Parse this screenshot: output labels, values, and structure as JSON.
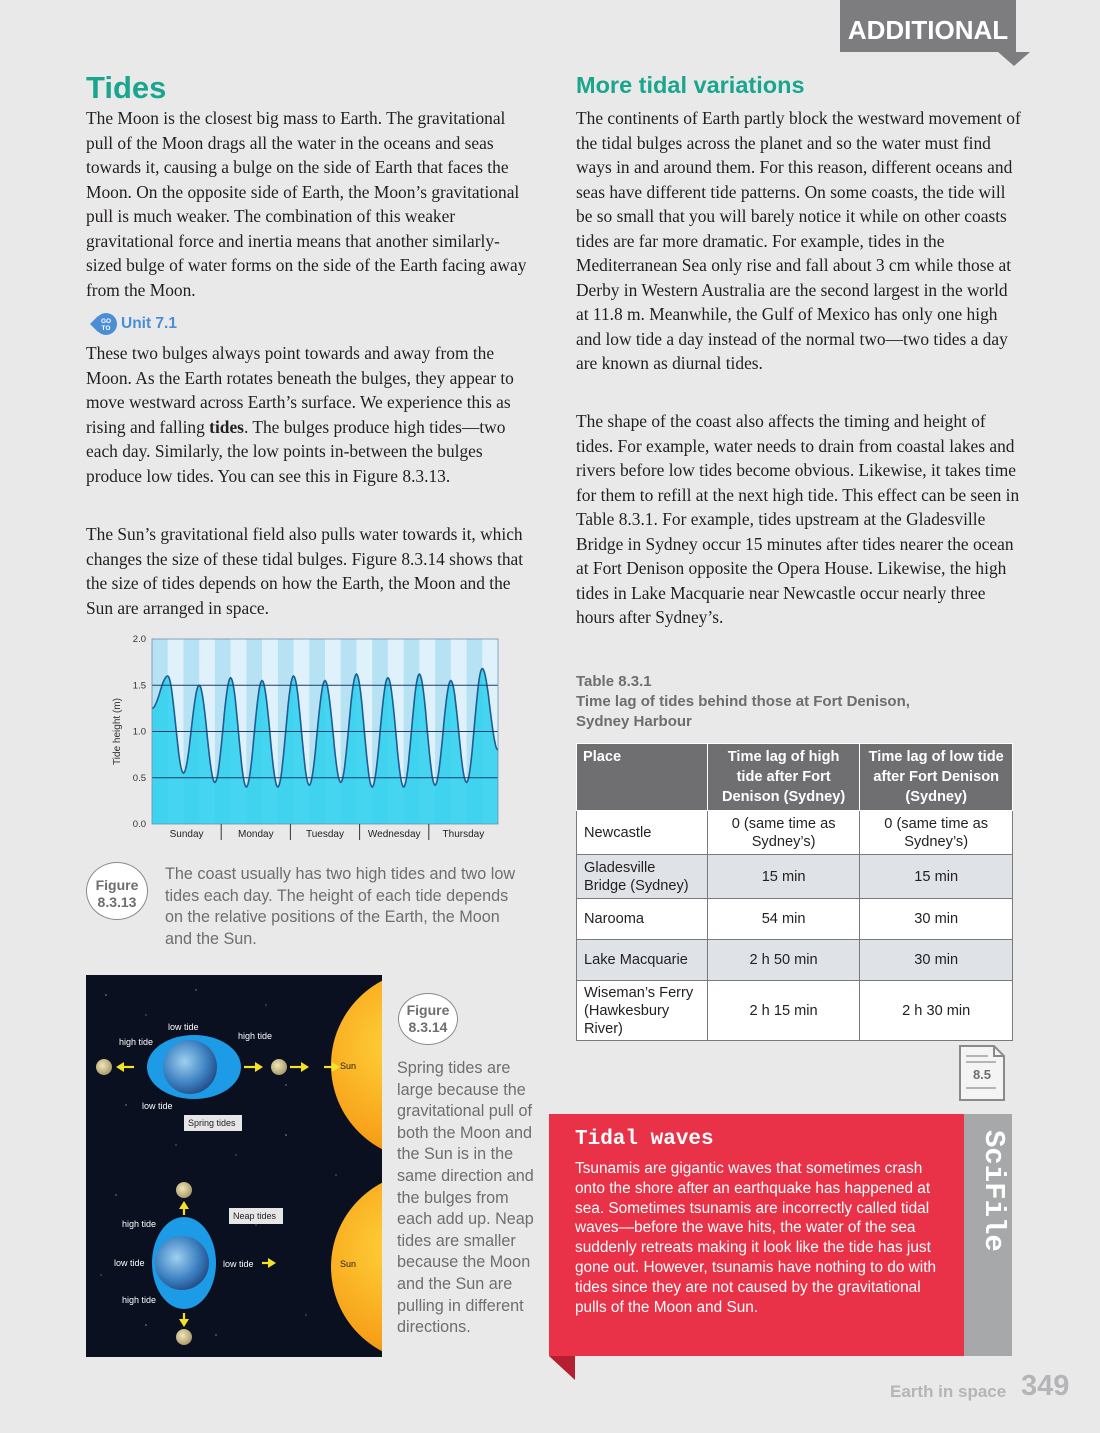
{
  "banner": "ADDITIONAL",
  "left": {
    "title": "Tides",
    "para1": "The Moon is the closest big mass to Earth. The gravitational pull of the Moon drags all the water in the oceans and seas towards it, causing a bulge on the side of Earth that faces the Moon. On the opposite side of Earth, the Moon’s gravitational pull is much weaker. The combination of this weaker gravitational force and inertia means that another similarly-sized bulge of water forms on the side of the Earth facing away from the Moon.",
    "goto_icon": "GO TO",
    "goto_label": "Unit 7.1",
    "para2_a": "These two bulges always point towards and away from the Moon. As the Earth rotates beneath the bulges, they appear to move westward across Earth’s surface. We experience this as rising and falling ",
    "para2_bold": "tides",
    "para2_b": ". The bulges produce high tides—two each day. Similarly, the low points in-between the bulges produce low tides. You can see this in Figure 8.3.13.",
    "para3": "The Sun’s gravitational field also pulls water towards it, which changes the size of these tidal bulges. Figure 8.3.14 shows that the size of tides depends on how the Earth, the Moon and the Sun are arranged in space."
  },
  "chart_data": {
    "type": "line",
    "ylabel": "Tide height (m)",
    "ylim": [
      0,
      2.0
    ],
    "yticks": [
      "0.0",
      "0.5",
      "1.0",
      "1.5",
      "2.0"
    ],
    "categories": [
      "Sunday",
      "Monday",
      "Tuesday",
      "Wednesday",
      "Thursday"
    ],
    "reference_lines": [
      0.5,
      1.0,
      1.5
    ],
    "extrema": [
      1.25,
      1.6,
      0.55,
      1.5,
      0.45,
      1.58,
      0.4,
      1.55,
      0.4,
      1.6,
      0.42,
      1.55,
      0.45,
      1.62,
      0.4,
      1.58,
      0.4,
      1.62,
      0.42,
      1.55,
      0.45,
      1.68,
      0.8
    ],
    "fill_color": "#2ad0ee",
    "line_color": "#1f5c92"
  },
  "fig13": {
    "label_a": "Figure",
    "label_b": "8.3.13",
    "caption": "The coast usually has two high tides and two low tides each day. The height of each tide depends on the relative positions of the Earth, the Moon and the Sun."
  },
  "fig14": {
    "label_a": "Figure",
    "label_b": "8.3.14",
    "caption": "Spring tides are large because the gravitational pull of both the Moon and the Sun is in the same direction and the bulges from each add up. Neap tides are smaller because the Moon and the Sun are pulling in different directions.",
    "spring": {
      "low_tide_top": "low tide",
      "high_tide_left": "high tide",
      "high_tide_right": "high tide",
      "low_tide_bottom": "low tide",
      "tag": "Spring tides",
      "sun": "Sun"
    },
    "neap": {
      "high_tide_top": "high tide",
      "low_tide_left": "low tide",
      "low_tide_right": "low tide",
      "high_tide_bottom": "high tide",
      "tag": "Neap tides",
      "sun": "Sun"
    }
  },
  "right": {
    "title": "More tidal variations",
    "para1": "The continents of Earth partly block the westward movement of the tidal bulges across the planet and so the water must find ways in and around them. For this reason, different oceans and seas have different tide patterns. On some coasts, the tide will be so small that you will barely notice it while on other coasts tides are far more dramatic. For example, tides in the Mediterranean Sea only rise and fall about 3 cm while those at Derby in Western Australia are the second largest in the world at 11.8 m. Meanwhile, the Gulf of Mexico has only one high and low tide a day instead of the normal two—two tides a day are known as diurnal tides.",
    "para2": "The shape of the coast also affects the timing and height of tides. For example, water needs to drain from coastal lakes and rivers before low tides become obvious. Likewise, it takes time for them to refill at the next high tide. This effect can be seen in Table 8.3.1. For example, tides upstream at the Gladesville Bridge in Sydney occur 15 minutes after tides nearer the ocean at Fort Denison opposite the Opera House. Likewise, the high tides in Lake Macquarie near Newcastle occur nearly three hours after Sydney’s."
  },
  "table": {
    "number": "Table 8.3.1",
    "title_line1": "Time lag of tides behind those at Fort Denison,",
    "title_line2": "Sydney Harbour",
    "headers": [
      "Place",
      "Time lag of high tide after Fort Denison (Sydney)",
      "Time lag of low tide after Fort Denison (Sydney)"
    ],
    "rows": [
      [
        "Newcastle",
        "0 (same time as Sydney’s)",
        "0 (same time as Sydney’s)"
      ],
      [
        "Gladesville Bridge (Sydney)",
        "15 min",
        "15 min"
      ],
      [
        "Narooma",
        "54 min",
        "30 min"
      ],
      [
        "Lake Macquarie",
        "2 h 50 min",
        "30 min"
      ],
      [
        "Wiseman’s Ferry (Hawkesbury River)",
        "2 h 15 min",
        "2 h 30 min"
      ]
    ]
  },
  "worksheet": "8.5",
  "scifile": {
    "title": "Tidal waves",
    "body": "Tsunamis are gigantic waves that sometimes crash onto the shore after an earthquake has happened at sea. Sometimes tsunamis are incorrectly called tidal waves—before the wave hits, the water of the sea suddenly retreats making it look like the tide has just gone out. However, tsunamis have nothing to do with tides since they are not caused by the gravitational pulls of the Moon and Sun.",
    "tab": "SciFile"
  },
  "footer": {
    "section": "Earth in space",
    "page": "349"
  },
  "colors": {
    "heading": "#1aa58e",
    "banner": "#7d7d7f",
    "scifile": "#e93247",
    "table_header": "#6f6f72"
  }
}
